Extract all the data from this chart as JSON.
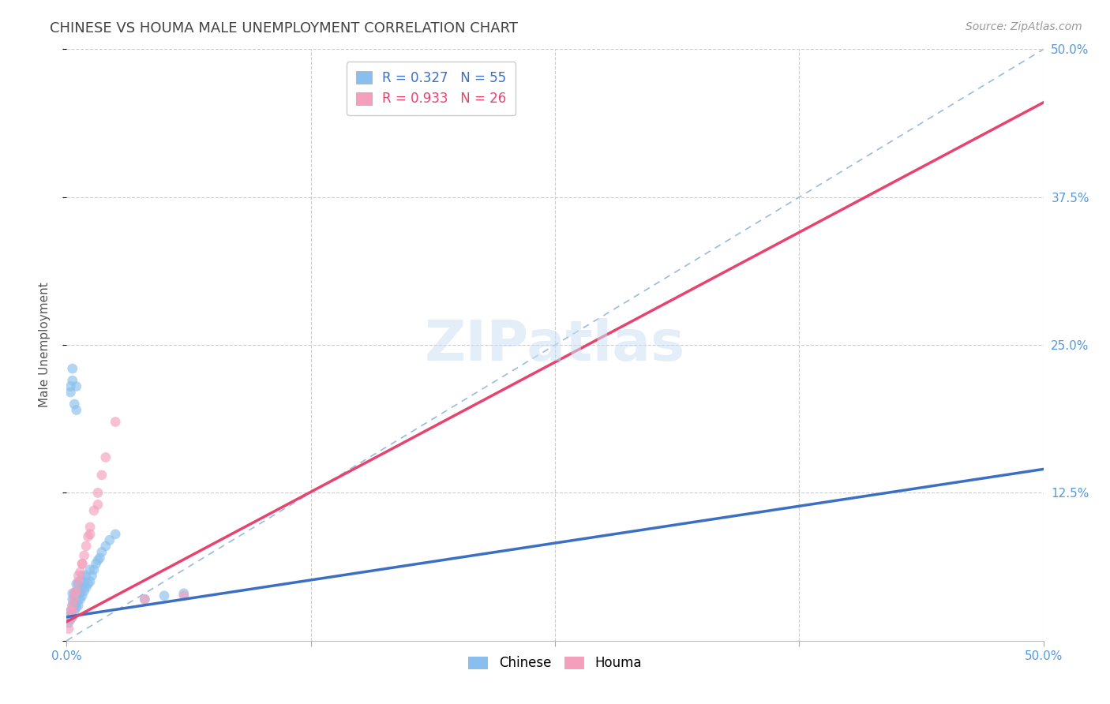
{
  "title": "CHINESE VS HOUMA MALE UNEMPLOYMENT CORRELATION CHART",
  "source": "Source: ZipAtlas.com",
  "ylabel": "Male Unemployment",
  "xlim": [
    0.0,
    0.5
  ],
  "ylim": [
    0.0,
    0.5
  ],
  "watermark": "ZIPatlas",
  "legend_r1": "R = 0.327",
  "legend_n1": "N = 55",
  "legend_r2": "R = 0.933",
  "legend_n2": "N = 26",
  "chinese_color": "#89bfee",
  "houma_color": "#f4a0bc",
  "chinese_line_color": "#3a6fc4",
  "houma_line_color": "#e8436e",
  "diagonal_color": "#99bbdd",
  "background_color": "#ffffff",
  "grid_color": "#cccccc",
  "title_color": "#444444",
  "axis_label_color": "#5599dd",
  "title_fontsize": 13,
  "source_fontsize": 10,
  "label_fontsize": 11,
  "tick_fontsize": 11,
  "legend_fontsize": 12,
  "watermark_fontsize": 52,
  "marker_size": 85,
  "chinese_line_x0": 0.0,
  "chinese_line_y0": 0.02,
  "chinese_line_x1": 0.5,
  "chinese_line_y1": 0.145,
  "houma_line_x0": 0.0,
  "houma_line_y0": 0.016,
  "houma_line_x1": 0.5,
  "houma_line_y1": 0.455,
  "chinese_x": [
    0.001,
    0.001,
    0.002,
    0.002,
    0.002,
    0.003,
    0.003,
    0.003,
    0.003,
    0.003,
    0.004,
    0.004,
    0.004,
    0.004,
    0.005,
    0.005,
    0.005,
    0.005,
    0.005,
    0.006,
    0.006,
    0.006,
    0.006,
    0.007,
    0.007,
    0.007,
    0.008,
    0.008,
    0.008,
    0.009,
    0.009,
    0.01,
    0.01,
    0.011,
    0.012,
    0.012,
    0.013,
    0.014,
    0.015,
    0.016,
    0.017,
    0.018,
    0.02,
    0.022,
    0.025,
    0.002,
    0.002,
    0.003,
    0.004,
    0.005,
    0.005,
    0.04,
    0.05,
    0.06,
    0.003
  ],
  "chinese_y": [
    0.015,
    0.02,
    0.018,
    0.022,
    0.025,
    0.02,
    0.025,
    0.03,
    0.035,
    0.04,
    0.025,
    0.03,
    0.035,
    0.04,
    0.028,
    0.032,
    0.037,
    0.042,
    0.048,
    0.03,
    0.035,
    0.04,
    0.048,
    0.035,
    0.04,
    0.05,
    0.038,
    0.045,
    0.055,
    0.042,
    0.05,
    0.045,
    0.055,
    0.048,
    0.05,
    0.06,
    0.055,
    0.06,
    0.065,
    0.068,
    0.07,
    0.075,
    0.08,
    0.085,
    0.09,
    0.21,
    0.215,
    0.22,
    0.2,
    0.195,
    0.215,
    0.035,
    0.038,
    0.04,
    0.23
  ],
  "houma_x": [
    0.001,
    0.002,
    0.003,
    0.004,
    0.005,
    0.006,
    0.007,
    0.008,
    0.009,
    0.01,
    0.011,
    0.012,
    0.014,
    0.016,
    0.018,
    0.02,
    0.025,
    0.002,
    0.003,
    0.004,
    0.006,
    0.008,
    0.012,
    0.016,
    0.04,
    0.06
  ],
  "houma_y": [
    0.01,
    0.018,
    0.025,
    0.035,
    0.042,
    0.05,
    0.058,
    0.065,
    0.072,
    0.08,
    0.088,
    0.096,
    0.11,
    0.125,
    0.14,
    0.155,
    0.185,
    0.025,
    0.03,
    0.04,
    0.055,
    0.065,
    0.09,
    0.115,
    0.035,
    0.038
  ]
}
